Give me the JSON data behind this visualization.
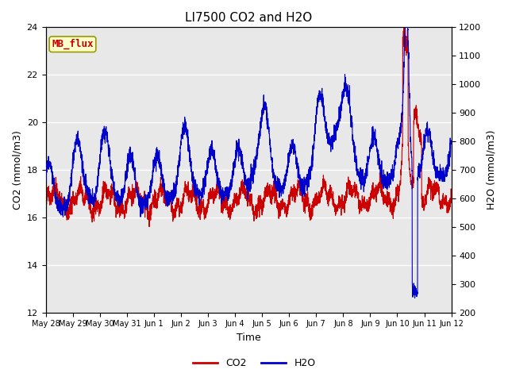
{
  "title": "LI7500 CO2 and H2O",
  "xlabel": "Time",
  "ylabel_left": "CO2 (mmol/m3)",
  "ylabel_right": "H2O (mmol/m3)",
  "ylim_left": [
    12,
    24
  ],
  "ylim_right": [
    200,
    1200
  ],
  "yticks_left": [
    12,
    14,
    16,
    18,
    20,
    22,
    24
  ],
  "yticks_right": [
    200,
    300,
    400,
    500,
    600,
    700,
    800,
    900,
    1000,
    1100,
    1200
  ],
  "fig_bg_color": "#ffffff",
  "plot_bg_color": "#e8e8e8",
  "grid_color": "#ffffff",
  "co2_color": "#cc0000",
  "h2o_color": "#0000cc",
  "annotation_text": "MB_flux",
  "annotation_bg": "#ffffcc",
  "annotation_edge": "#999900",
  "annotation_text_color": "#cc0000",
  "legend_co2": "CO2",
  "legend_h2o": "H2O",
  "n_points": 3000,
  "title_fontsize": 11,
  "axis_label_fontsize": 9,
  "tick_fontsize": 8,
  "annotation_fontsize": 9
}
